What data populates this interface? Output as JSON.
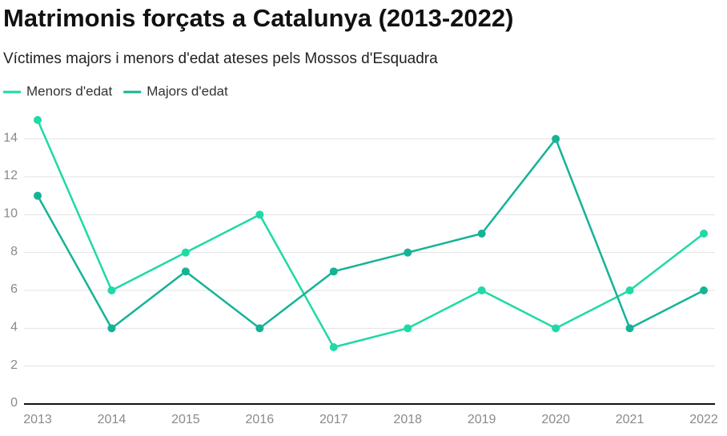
{
  "chart_data": {
    "type": "line",
    "title": "Matrimonis forçats a Catalunya (2013-2022)",
    "subtitle": "Víctimes majors i menors d'edat ateses pels Mossos d'Esquadra",
    "categories": [
      "2013",
      "2014",
      "2015",
      "2016",
      "2017",
      "2018",
      "2019",
      "2020",
      "2021",
      "2022"
    ],
    "series": [
      {
        "name": "Menors d'edat",
        "color": "#1fd9a6",
        "values": [
          15,
          6,
          8,
          10,
          3,
          4,
          6,
          4,
          6,
          9
        ]
      },
      {
        "name": "Majors d'edat",
        "color": "#15b396",
        "values": [
          11,
          4,
          7,
          4,
          7,
          8,
          9,
          14,
          4,
          6
        ]
      }
    ],
    "ylim": [
      0,
      15
    ],
    "yticks": [
      0,
      2,
      4,
      6,
      8,
      10,
      12,
      14
    ],
    "grid": true,
    "legend": "top-left"
  }
}
